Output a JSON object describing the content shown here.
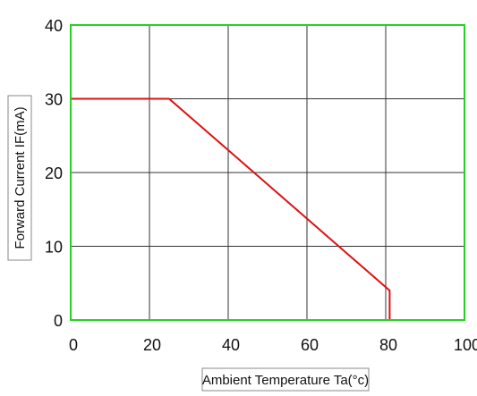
{
  "chart_data": {
    "type": "line",
    "title": "",
    "xlabel": "Ambient Temperature Ta(°c)",
    "ylabel": "Forward Current IF(mA)",
    "xlim": [
      0,
      100
    ],
    "ylim": [
      0,
      40
    ],
    "xticks": [
      0,
      20,
      40,
      60,
      80,
      100
    ],
    "yticks": [
      0,
      10,
      20,
      30,
      40
    ],
    "xtick_labels": [
      "0",
      "20",
      "40",
      "60",
      "80",
      "100"
    ],
    "ytick_labels": [
      "0",
      "10",
      "20",
      "30",
      "40"
    ],
    "grid": true,
    "legend": "none",
    "series": [
      {
        "points": [
          [
            0,
            30
          ],
          [
            25,
            30
          ],
          [
            81,
            4
          ],
          [
            81,
            0
          ]
        ]
      }
    ],
    "colors": {
      "frame": "#22d322",
      "grid": "#333333",
      "line": "#dd1111",
      "label_box": "#888888",
      "text": "#111111"
    }
  }
}
